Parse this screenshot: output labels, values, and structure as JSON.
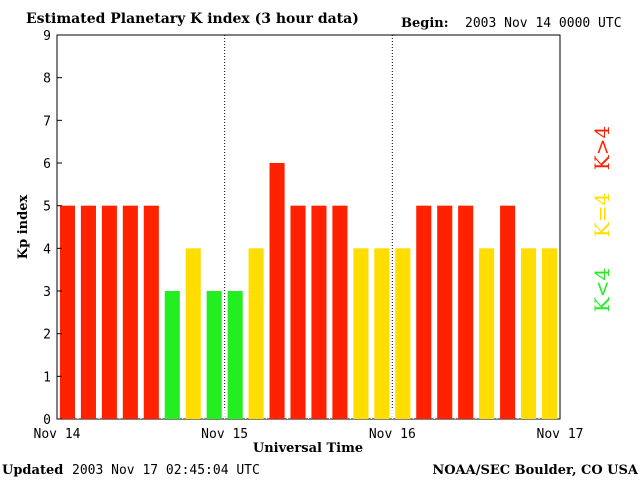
{
  "header": {
    "title": "Estimated Planetary K index (3 hour data)",
    "begin_label": "Begin:",
    "begin_value": "2003 Nov 14 0000 UTC"
  },
  "footer": {
    "updated_label": "Updated",
    "updated_value": "2003 Nov 17 02:45:04 UTC",
    "source": "NOAA/SEC Boulder, CO USA"
  },
  "legend": {
    "low": "K<4",
    "mid": "K=4",
    "high": "K>4"
  },
  "colors": {
    "low": "#22ee22",
    "mid": "#ffdd00",
    "high": "#ff2200"
  },
  "chart_data": {
    "type": "bar",
    "title": "Estimated Planetary K index (3 hour data)",
    "xlabel": "Universal Time",
    "ylabel": "Kp index",
    "ylim": [
      0,
      9
    ],
    "yticks": [
      0,
      1,
      2,
      3,
      4,
      5,
      6,
      7,
      8,
      9
    ],
    "xtick_labels": [
      "Nov 14",
      "Nov 15",
      "Nov 16",
      "Nov 17"
    ],
    "day_separators": [
      "Nov 15",
      "Nov 16"
    ],
    "interval_hours": 3,
    "values": [
      5,
      5,
      5,
      5,
      5,
      3,
      4,
      3,
      3,
      4,
      6,
      5,
      5,
      5,
      4,
      4,
      4,
      5,
      5,
      5,
      4,
      5,
      4,
      4
    ],
    "color_rule": "green if K<4, yellow if K=4, red if K>4"
  }
}
